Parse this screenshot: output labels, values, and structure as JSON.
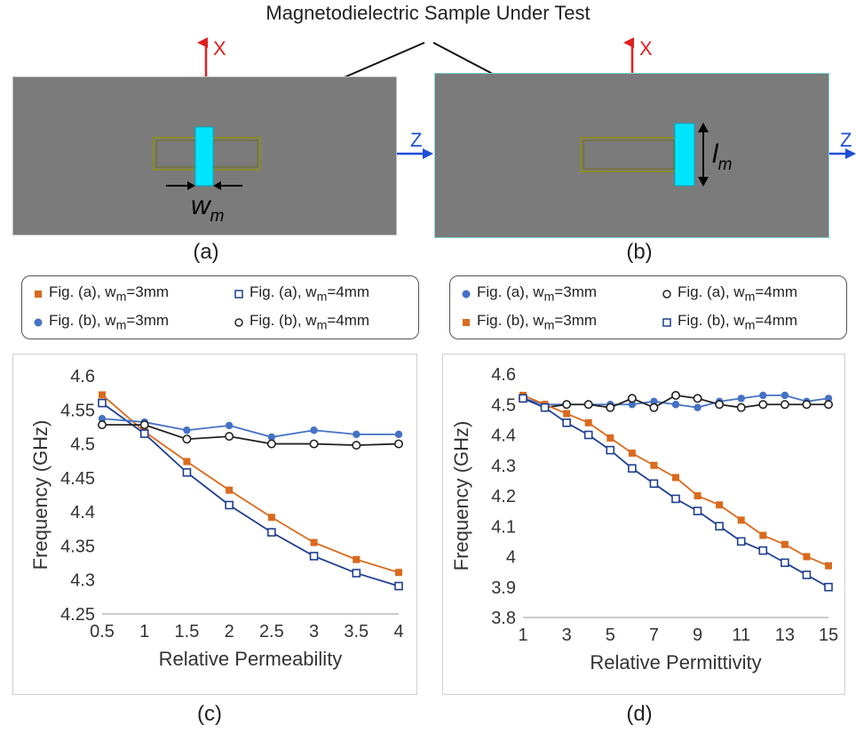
{
  "figure": {
    "title": "Magnetodielectric Sample Under Test",
    "axis_x_label": "X",
    "axis_z_label": "Z",
    "dim_w": "w",
    "dim_w_sub": "m",
    "dim_l": "l",
    "dim_l_sub": "m",
    "panel_labels": [
      "(a)",
      "(b)",
      "(c)",
      "(d)"
    ],
    "colors": {
      "orange": "#d96a1e",
      "blue": "#4472c4",
      "navy": "#1f3f8f",
      "black": "#222222",
      "sample": "#00e5ff",
      "arrow": "#e02020",
      "z_arrow": "#1e4fd6",
      "board": "#7b7b7b"
    }
  },
  "chart_data": [
    {
      "type": "line",
      "panel": "(c)",
      "xlabel": "Relative Permeability",
      "ylabel": "Frequency (GHz)",
      "xlim": [
        0.5,
        4
      ],
      "ylim": [
        4.25,
        4.6
      ],
      "xticks": [
        "0.5",
        "1",
        "1.5",
        "2",
        "2.5",
        "3",
        "3.5",
        "4"
      ],
      "yticks": [
        "4.25",
        "4.3",
        "4.35",
        "4.4",
        "4.45",
        "4.5",
        "4.55",
        "4.6"
      ],
      "grid": false,
      "legend_position": "top",
      "x": [
        0.5,
        1,
        1.5,
        2,
        2.5,
        3,
        3.5,
        4
      ],
      "series": [
        {
          "name": "Fig. (a), w",
          "name_sub": "m",
          "name_tail": "=3mm",
          "color": "#d96a1e",
          "marker": "square-filled",
          "values": [
            4.572,
            4.518,
            4.474,
            4.432,
            4.392,
            4.355,
            4.33,
            4.311
          ]
        },
        {
          "name": "Fig. (a), w",
          "name_sub": "m",
          "name_tail": "=4mm",
          "color": "#1f3f8f",
          "marker": "square-open",
          "values": [
            4.56,
            4.515,
            4.458,
            4.41,
            4.37,
            4.335,
            4.31,
            4.291
          ]
        },
        {
          "name": "Fig. (b), w",
          "name_sub": "m",
          "name_tail": "=3mm",
          "color": "#4472c4",
          "marker": "diamond-filled",
          "values": [
            4.537,
            4.532,
            4.52,
            4.527,
            4.51,
            4.52,
            4.514,
            4.514
          ]
        },
        {
          "name": "Fig. (b), w",
          "name_sub": "m",
          "name_tail": "=4mm",
          "color": "#222222",
          "marker": "circle-open",
          "values": [
            4.528,
            4.528,
            4.507,
            4.511,
            4.5,
            4.5,
            4.498,
            4.5
          ]
        }
      ]
    },
    {
      "type": "line",
      "panel": "(d)",
      "xlabel": "Relative Permittivity",
      "ylabel": "Frequency (GHz)",
      "xlim": [
        1,
        15
      ],
      "ylim": [
        3.8,
        4.6
      ],
      "xticks": [
        "1",
        "3",
        "5",
        "7",
        "9",
        "11",
        "13",
        "15"
      ],
      "yticks": [
        "3.8",
        "3.9",
        "4",
        "4.1",
        "4.2",
        "4.3",
        "4.4",
        "4.5",
        "4.6"
      ],
      "grid": false,
      "legend_position": "top",
      "x": [
        1,
        2,
        3,
        4,
        5,
        6,
        7,
        8,
        9,
        10,
        11,
        12,
        13,
        14,
        15
      ],
      "series": [
        {
          "name": "Fig. (a), w",
          "name_sub": "m",
          "name_tail": "=3mm",
          "color": "#4472c4",
          "marker": "diamond-filled",
          "values": [
            4.52,
            4.5,
            4.5,
            4.5,
            4.5,
            4.5,
            4.51,
            4.5,
            4.49,
            4.51,
            4.52,
            4.53,
            4.53,
            4.51,
            4.52
          ]
        },
        {
          "name": "Fig. (a), w",
          "name_sub": "m",
          "name_tail": "=4mm",
          "color": "#222222",
          "marker": "circle-open",
          "values": [
            4.52,
            4.49,
            4.5,
            4.5,
            4.49,
            4.52,
            4.49,
            4.53,
            4.52,
            4.5,
            4.49,
            4.5,
            4.5,
            4.5,
            4.5
          ]
        },
        {
          "name": "Fig. (b), w",
          "name_sub": "m",
          "name_tail": "=3mm",
          "color": "#d96a1e",
          "marker": "square-filled",
          "values": [
            4.53,
            4.5,
            4.47,
            4.44,
            4.39,
            4.34,
            4.3,
            4.26,
            4.2,
            4.17,
            4.12,
            4.07,
            4.04,
            4.0,
            3.97
          ]
        },
        {
          "name": "Fig. (b), w",
          "name_sub": "m",
          "name_tail": "=4mm",
          "color": "#1f3f8f",
          "marker": "square-open",
          "values": [
            4.52,
            4.49,
            4.44,
            4.4,
            4.35,
            4.29,
            4.24,
            4.19,
            4.15,
            4.1,
            4.05,
            4.02,
            3.98,
            3.94,
            3.9
          ]
        }
      ]
    }
  ]
}
